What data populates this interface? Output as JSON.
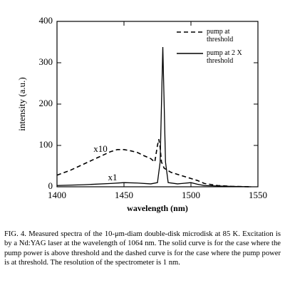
{
  "chart_data": {
    "type": "line",
    "xlabel": "wavelength (nm)",
    "ylabel": "intensity (a.u.)",
    "xlim": [
      1400,
      1550
    ],
    "xticks": [
      1400,
      1450,
      1500,
      1550
    ],
    "ylim": [
      0,
      400
    ],
    "yticks": [
      0,
      100,
      200,
      300,
      400
    ],
    "legend": "upper right",
    "annotations": [
      "x10",
      "x1"
    ],
    "series": [
      {
        "name": "pump at threshold",
        "color": "#000000",
        "dash": true,
        "x": [
          1400,
          1410,
          1420,
          1430,
          1440,
          1445,
          1450,
          1455,
          1460,
          1465,
          1470,
          1473,
          1475,
          1476,
          1477,
          1478,
          1480,
          1485,
          1490,
          1495,
          1500,
          1505,
          1510,
          1520,
          1530,
          1545
        ],
        "values": [
          28,
          40,
          55,
          70,
          85,
          90,
          90,
          87,
          83,
          75,
          68,
          60,
          100,
          115,
          95,
          60,
          45,
          35,
          30,
          25,
          20,
          15,
          8,
          3,
          1,
          0
        ]
      },
      {
        "name": "pump at 2 X threshold",
        "color": "#000000",
        "dash": false,
        "x": [
          1400,
          1420,
          1440,
          1450,
          1460,
          1470,
          1475,
          1477,
          1478,
          1479,
          1480,
          1481,
          1483,
          1490,
          1500,
          1505,
          1510,
          1520,
          1530,
          1545
        ],
        "values": [
          3,
          5,
          8,
          10,
          9,
          7,
          10,
          60,
          200,
          338,
          200,
          60,
          10,
          7,
          10,
          6,
          3,
          2,
          1,
          0
        ]
      }
    ]
  },
  "caption": "FIG. 4. Measured spectra of the 10-μm-diam double-disk microdisk at 85 K. Excitation is by a Nd:YAG laser at the wavelength of 1064 nm. The solid curve is for the case where the pump power is above threshold and the dashed curve is for the case where the pump power is at threshold. The resolution of the spectrometer is 1 nm."
}
